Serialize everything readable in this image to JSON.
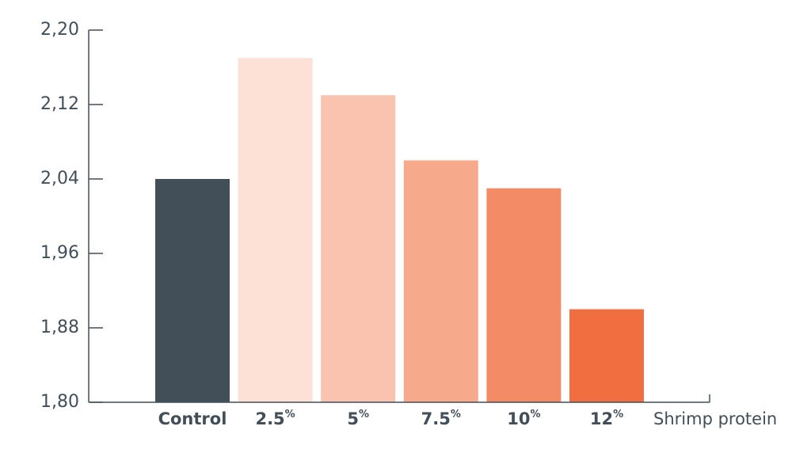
{
  "chart_data": {
    "type": "bar",
    "categories": [
      "Control",
      "2.5%",
      "5%",
      "7.5%",
      "10%",
      "12%"
    ],
    "values": [
      2.04,
      2.17,
      2.13,
      2.06,
      2.03,
      1.9
    ],
    "colors": [
      "#424f59",
      "#fde0d6",
      "#f9c3b0",
      "#f7a98c",
      "#f38c66",
      "#f06e3f"
    ],
    "x_label": "Shrimp protein",
    "ylim": [
      1.8,
      2.2
    ],
    "yticks": [
      {
        "value": 1.8,
        "label": "1,80"
      },
      {
        "value": 1.88,
        "label": "1,88"
      },
      {
        "value": 1.96,
        "label": "1,96"
      },
      {
        "value": 2.04,
        "label": "2,04"
      },
      {
        "value": 2.12,
        "label": "2,12"
      },
      {
        "value": 2.2,
        "label": "2,20"
      }
    ],
    "axis_color": "#424f59"
  }
}
